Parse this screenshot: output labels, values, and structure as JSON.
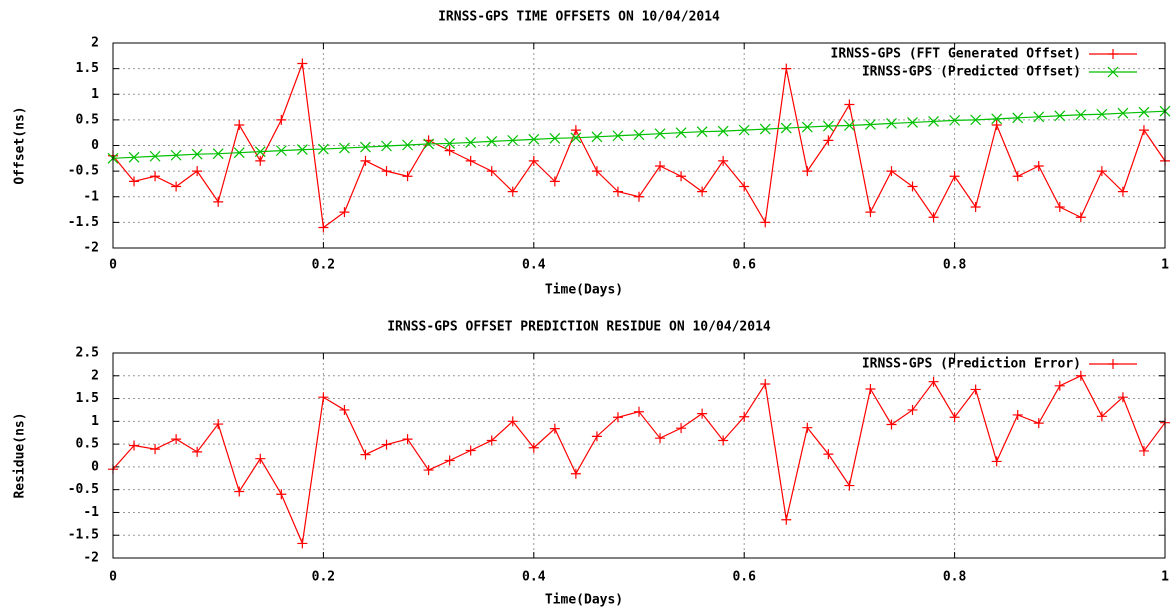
{
  "chart_data": [
    {
      "type": "line",
      "title": "IRNSS-GPS TIME OFFSETS ON 10/04/2014",
      "x_label": "Time(Days)",
      "y_label": "Offset(ns)",
      "x": [
        0,
        0.02,
        0.04,
        0.06,
        0.08,
        0.1,
        0.12,
        0.14,
        0.16,
        0.18,
        0.2,
        0.22,
        0.24,
        0.26,
        0.28,
        0.3,
        0.32,
        0.34,
        0.36,
        0.38,
        0.4,
        0.42,
        0.44,
        0.46,
        0.48,
        0.5,
        0.52,
        0.54,
        0.56,
        0.58,
        0.6,
        0.62,
        0.64,
        0.66,
        0.68,
        0.7,
        0.72,
        0.74,
        0.76,
        0.78,
        0.8,
        0.82,
        0.84,
        0.86,
        0.88,
        0.9,
        0.92,
        0.94,
        0.96,
        0.98,
        1
      ],
      "series": [
        {
          "name": "IRNSS-GPS (FFT Generated Offset)",
          "color": "#ff0000",
          "marker": "plus",
          "values": [
            -0.2,
            -0.7,
            -0.6,
            -0.8,
            -0.5,
            -1.1,
            0.4,
            -0.3,
            0.5,
            1.6,
            -1.6,
            -1.3,
            -0.3,
            -0.5,
            -0.6,
            0.1,
            -0.1,
            -0.3,
            -0.5,
            -0.9,
            -0.3,
            -0.7,
            0.3,
            -0.5,
            -0.9,
            -1.0,
            -0.4,
            -0.6,
            -0.9,
            -0.3,
            -0.8,
            -1.5,
            1.5,
            -0.5,
            0.1,
            0.8,
            -1.3,
            -0.5,
            -0.8,
            -1.4,
            -0.6,
            -1.2,
            0.4,
            -0.6,
            -0.4,
            -1.2,
            -1.4,
            -0.5,
            -0.9,
            0.3,
            -0.3
          ]
        },
        {
          "name": "IRNSS-GPS (Predicted Offset)",
          "color": "#00c000",
          "marker": "cross",
          "values": [
            -0.25,
            -0.23,
            -0.21,
            -0.19,
            -0.17,
            -0.16,
            -0.14,
            -0.12,
            -0.1,
            -0.08,
            -0.07,
            -0.05,
            -0.03,
            -0.01,
            0.01,
            0.03,
            0.04,
            0.06,
            0.08,
            0.1,
            0.12,
            0.14,
            0.15,
            0.17,
            0.19,
            0.21,
            0.23,
            0.25,
            0.27,
            0.28,
            0.3,
            0.32,
            0.34,
            0.36,
            0.38,
            0.39,
            0.41,
            0.43,
            0.45,
            0.47,
            0.49,
            0.5,
            0.52,
            0.54,
            0.56,
            0.58,
            0.6,
            0.61,
            0.63,
            0.65,
            0.67
          ]
        }
      ],
      "xlim": [
        0,
        1
      ],
      "xticks": [
        0,
        0.2,
        0.4,
        0.6,
        0.8,
        1
      ],
      "ylim": [
        -2,
        2
      ],
      "yticks": [
        -2,
        -1.5,
        -1,
        -0.5,
        0,
        0.5,
        1,
        1.5,
        2
      ],
      "grid": true,
      "legend": "upper right"
    },
    {
      "type": "line",
      "title": "IRNSS-GPS OFFSET PREDICTION RESIDUE ON 10/04/2014",
      "x_label": "Time(Days)",
      "y_label": "Residue(ns)",
      "x": [
        0,
        0.02,
        0.04,
        0.06,
        0.08,
        0.1,
        0.12,
        0.14,
        0.16,
        0.18,
        0.2,
        0.22,
        0.24,
        0.26,
        0.28,
        0.3,
        0.32,
        0.34,
        0.36,
        0.38,
        0.4,
        0.42,
        0.44,
        0.46,
        0.48,
        0.5,
        0.52,
        0.54,
        0.56,
        0.58,
        0.6,
        0.62,
        0.64,
        0.66,
        0.68,
        0.7,
        0.72,
        0.74,
        0.76,
        0.78,
        0.8,
        0.82,
        0.84,
        0.86,
        0.88,
        0.9,
        0.92,
        0.94,
        0.96,
        0.98,
        1
      ],
      "series": [
        {
          "name": "IRNSS-GPS (Prediction Error)",
          "color": "#ff0000",
          "marker": "plus",
          "values": [
            -0.05,
            0.47,
            0.39,
            0.61,
            0.33,
            0.94,
            -0.54,
            0.18,
            -0.6,
            -1.68,
            1.53,
            1.25,
            0.27,
            0.49,
            0.61,
            -0.07,
            0.14,
            0.36,
            0.58,
            1.0,
            0.42,
            0.84,
            -0.15,
            0.67,
            1.09,
            1.21,
            0.63,
            0.85,
            1.17,
            0.58,
            1.1,
            1.82,
            -1.16,
            0.86,
            0.28,
            -0.41,
            1.71,
            0.93,
            1.25,
            1.87,
            1.09,
            1.7,
            0.12,
            1.14,
            0.96,
            1.78,
            2.0,
            1.11,
            1.53,
            0.35,
            0.97
          ]
        }
      ],
      "xlim": [
        0,
        1
      ],
      "xticks": [
        0,
        0.2,
        0.4,
        0.6,
        0.8,
        1
      ],
      "ylim": [
        -2,
        2.5
      ],
      "yticks": [
        -2,
        -1.5,
        -1,
        -0.5,
        0,
        0.5,
        1,
        1.5,
        2,
        2.5
      ],
      "grid": true,
      "legend": "upper right"
    }
  ]
}
